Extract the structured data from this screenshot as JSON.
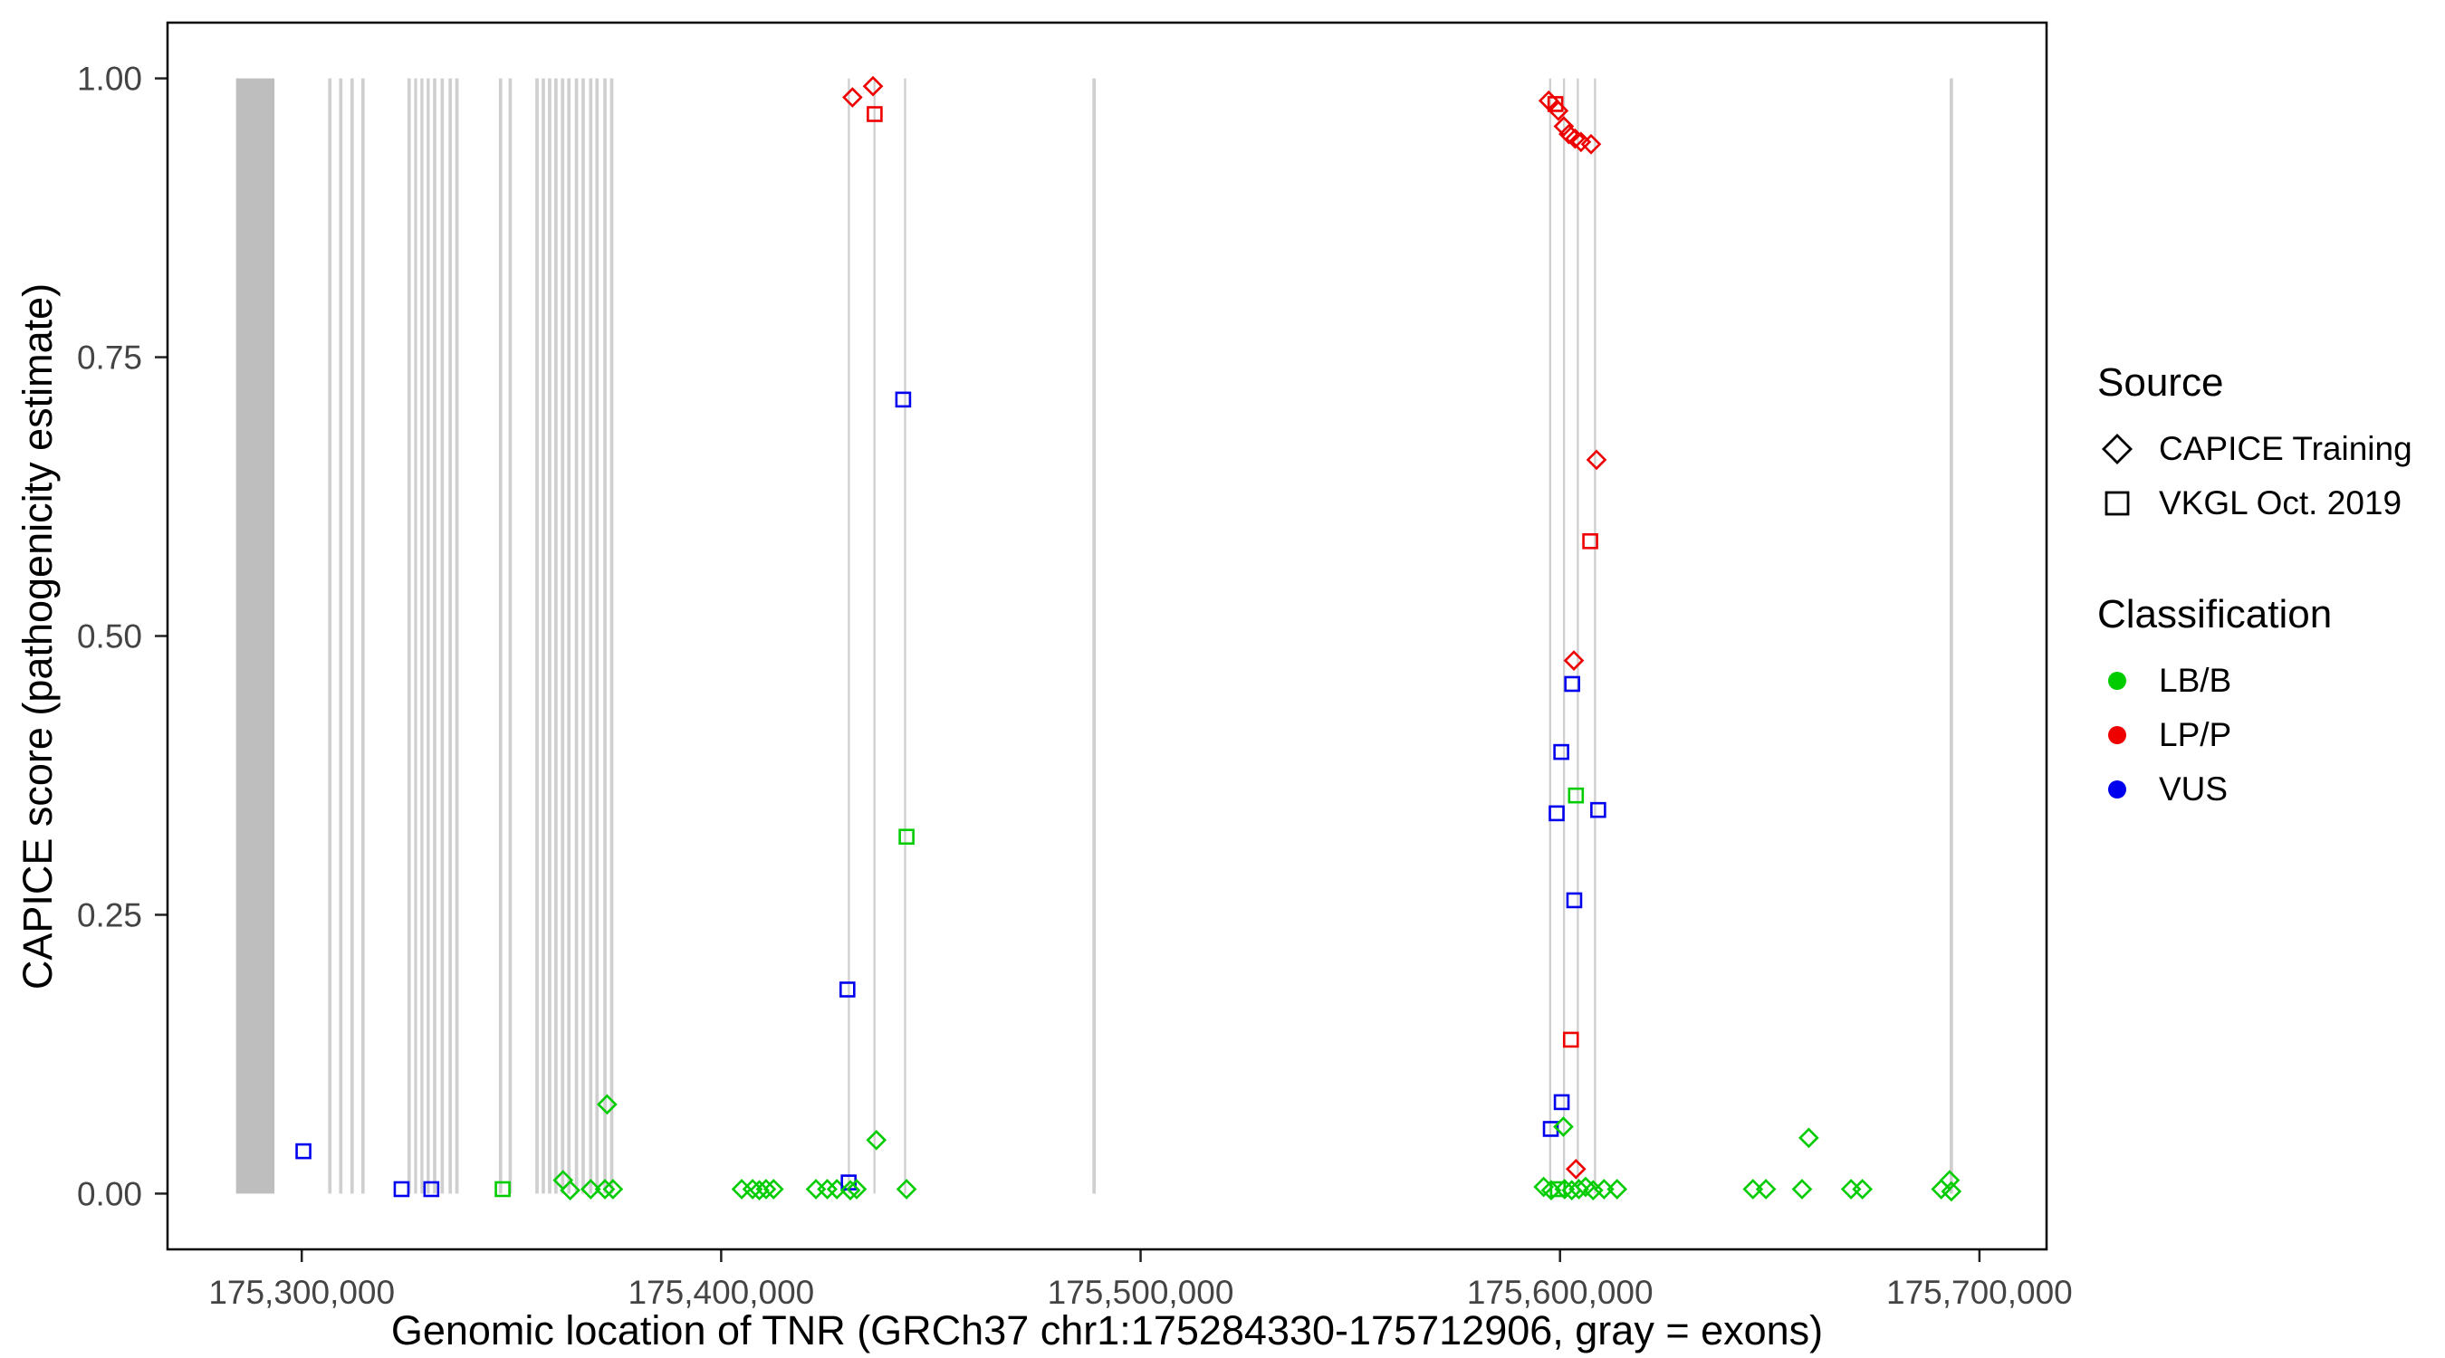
{
  "figure": {
    "xlabel": "Genomic location of TNR (GRCh37 chr1:175284330-175712906, gray = exons)",
    "ylabel": "CAPICE score (pathogenicity estimate)"
  },
  "legend": {
    "source": {
      "title": "Source",
      "items": [
        {
          "label": "CAPICE Training",
          "shape": "diamond"
        },
        {
          "label": "VKGL Oct. 2019",
          "shape": "square"
        }
      ]
    },
    "classification": {
      "title": "Classification",
      "items": [
        {
          "label": "LB/B",
          "color": "#00CC00"
        },
        {
          "label": "LP/P",
          "color": "#EE0000"
        },
        {
          "label": "VUS",
          "color": "#0000EE"
        }
      ]
    }
  },
  "chart_data": {
    "type": "scatter",
    "title": "",
    "xlabel": "Genomic location of TNR (GRCh37 chr1:175284330-175712906, gray = exons)",
    "ylabel": "CAPICE score (pathogenicity estimate)",
    "x_axis": {
      "min": 175268000,
      "max": 175716000,
      "ticks": [
        175300000,
        175400000,
        175500000,
        175600000,
        175700000
      ],
      "tick_labels": [
        "175,300,000",
        "175,400,000",
        "175,500,000",
        "175,600,000",
        "175,700,000"
      ]
    },
    "y_axis": {
      "min": -0.05,
      "max": 1.05,
      "ticks": [
        0.0,
        0.25,
        0.5,
        0.75,
        1.0
      ],
      "tick_labels": [
        "0.00",
        "0.25",
        "0.50",
        "0.75",
        "1.00"
      ]
    },
    "colors": {
      "LB/B": "#00CC00",
      "LP/P": "#EE0000",
      "VUS": "#0000EE",
      "exon_thick": "#BEBEBE",
      "exon_thin": "#CFCFCF",
      "panel_border": "#000000",
      "tick_text": "#444444"
    },
    "exon_note": "gray vertical bands = exons, genomic start/end pairs",
    "exons": [
      [
        175284330,
        175293500
      ],
      [
        175306300,
        175307100
      ],
      [
        175308900,
        175309700
      ],
      [
        175311600,
        175312400
      ],
      [
        175314200,
        175315000
      ],
      [
        175325200,
        175326000
      ],
      [
        175326800,
        175327500
      ],
      [
        175328300,
        175329000
      ],
      [
        175329800,
        175330500
      ],
      [
        175331300,
        175332100
      ],
      [
        175333100,
        175333900
      ],
      [
        175335000,
        175335800
      ],
      [
        175336600,
        175337400
      ],
      [
        175347000,
        175347800
      ],
      [
        175349300,
        175350100
      ],
      [
        175355700,
        175356500
      ],
      [
        175357200,
        175358000
      ],
      [
        175358700,
        175359500
      ],
      [
        175360200,
        175361000
      ],
      [
        175361800,
        175362600
      ],
      [
        175363300,
        175364100
      ],
      [
        175365100,
        175365900
      ],
      [
        175366700,
        175367500
      ],
      [
        175368500,
        175369300
      ],
      [
        175370000,
        175370800
      ],
      [
        175371900,
        175372700
      ],
      [
        175373500,
        175374300
      ],
      [
        175430200,
        175430700
      ],
      [
        175436300,
        175436800
      ],
      [
        175443600,
        175444100
      ],
      [
        175488500,
        175489300
      ],
      [
        175597400,
        175597900
      ],
      [
        175600700,
        175601200
      ],
      [
        175604000,
        175604500
      ],
      [
        175608100,
        175608600
      ],
      [
        175692900,
        175693700
      ]
    ],
    "points_format": [
      "genomic_position",
      "capice_score",
      "source",
      "classification"
    ],
    "points": [
      [
        175431300,
        0.983,
        "training",
        "LP/P"
      ],
      [
        175436200,
        0.993,
        "training",
        "LP/P"
      ],
      [
        175436600,
        0.968,
        "vkgl",
        "LP/P"
      ],
      [
        175443400,
        0.712,
        "vkgl",
        "VUS"
      ],
      [
        175444200,
        0.32,
        "vkgl",
        "LB/B"
      ],
      [
        175430100,
        0.183,
        "vkgl",
        "VUS"
      ],
      [
        175372800,
        0.08,
        "training",
        "LB/B"
      ],
      [
        175437000,
        0.048,
        "training",
        "LB/B"
      ],
      [
        175300400,
        0.038,
        "vkgl",
        "VUS"
      ],
      [
        175323800,
        0.004,
        "vkgl",
        "VUS"
      ],
      [
        175330900,
        0.004,
        "vkgl",
        "VUS"
      ],
      [
        175347900,
        0.004,
        "vkgl",
        "LB/B"
      ],
      [
        175362300,
        0.012,
        "training",
        "LB/B"
      ],
      [
        175364000,
        0.003,
        "training",
        "LB/B"
      ],
      [
        175368900,
        0.004,
        "training",
        "LB/B"
      ],
      [
        175372300,
        0.004,
        "training",
        "LB/B"
      ],
      [
        175374200,
        0.004,
        "training",
        "LB/B"
      ],
      [
        175404900,
        0.004,
        "training",
        "LB/B"
      ],
      [
        175407500,
        0.004,
        "training",
        "LB/B"
      ],
      [
        175409100,
        0.003,
        "training",
        "LB/B"
      ],
      [
        175410700,
        0.004,
        "training",
        "LB/B"
      ],
      [
        175412500,
        0.004,
        "training",
        "LB/B"
      ],
      [
        175422600,
        0.004,
        "training",
        "LB/B"
      ],
      [
        175425300,
        0.004,
        "training",
        "LB/B"
      ],
      [
        175427600,
        0.004,
        "training",
        "LB/B"
      ],
      [
        175430400,
        0.01,
        "vkgl",
        "VUS"
      ],
      [
        175430800,
        0.003,
        "training",
        "LB/B"
      ],
      [
        175432300,
        0.004,
        "training",
        "LB/B"
      ],
      [
        175444200,
        0.004,
        "training",
        "LB/B"
      ],
      [
        175597300,
        0.98,
        "training",
        "LP/P"
      ],
      [
        175598900,
        0.977,
        "vkgl",
        "LP/P"
      ],
      [
        175599600,
        0.971,
        "training",
        "LP/P"
      ],
      [
        175600900,
        0.957,
        "training",
        "LP/P"
      ],
      [
        175602100,
        0.95,
        "training",
        "LP/P"
      ],
      [
        175603600,
        0.946,
        "training",
        "LP/P"
      ],
      [
        175605000,
        0.943,
        "training",
        "LP/P"
      ],
      [
        175607400,
        0.941,
        "training",
        "LP/P"
      ],
      [
        175608700,
        0.658,
        "training",
        "LP/P"
      ],
      [
        175607200,
        0.585,
        "vkgl",
        "LP/P"
      ],
      [
        175603300,
        0.478,
        "training",
        "LP/P"
      ],
      [
        175602900,
        0.457,
        "vkgl",
        "VUS"
      ],
      [
        175600300,
        0.396,
        "vkgl",
        "VUS"
      ],
      [
        175603800,
        0.357,
        "vkgl",
        "LB/B"
      ],
      [
        175599200,
        0.341,
        "vkgl",
        "VUS"
      ],
      [
        175609100,
        0.344,
        "vkgl",
        "VUS"
      ],
      [
        175603400,
        0.263,
        "vkgl",
        "VUS"
      ],
      [
        175602600,
        0.138,
        "vkgl",
        "LP/P"
      ],
      [
        175600400,
        0.082,
        "vkgl",
        "VUS"
      ],
      [
        175597800,
        0.058,
        "vkgl",
        "VUS"
      ],
      [
        175600800,
        0.06,
        "training",
        "LB/B"
      ],
      [
        175603800,
        0.022,
        "training",
        "LP/P"
      ],
      [
        175596100,
        0.006,
        "training",
        "LB/B"
      ],
      [
        175597900,
        0.003,
        "training",
        "LB/B"
      ],
      [
        175599500,
        0.004,
        "vkgl",
        "LB/B"
      ],
      [
        175601100,
        0.004,
        "training",
        "LB/B"
      ],
      [
        175602800,
        0.003,
        "training",
        "LB/B"
      ],
      [
        175604500,
        0.004,
        "training",
        "LB/B"
      ],
      [
        175606100,
        0.006,
        "training",
        "LB/B"
      ],
      [
        175607900,
        0.003,
        "training",
        "LB/B"
      ],
      [
        175610500,
        0.004,
        "training",
        "LB/B"
      ],
      [
        175613600,
        0.004,
        "training",
        "LB/B"
      ],
      [
        175646000,
        0.004,
        "training",
        "LB/B"
      ],
      [
        175649100,
        0.004,
        "training",
        "LB/B"
      ],
      [
        175657700,
        0.004,
        "training",
        "LB/B"
      ],
      [
        175659300,
        0.05,
        "training",
        "LB/B"
      ],
      [
        175669400,
        0.004,
        "training",
        "LB/B"
      ],
      [
        175672100,
        0.004,
        "training",
        "LB/B"
      ],
      [
        175690900,
        0.004,
        "training",
        "LB/B"
      ],
      [
        175692900,
        0.012,
        "training",
        "LB/B"
      ],
      [
        175693300,
        0.002,
        "training",
        "LB/B"
      ]
    ]
  }
}
